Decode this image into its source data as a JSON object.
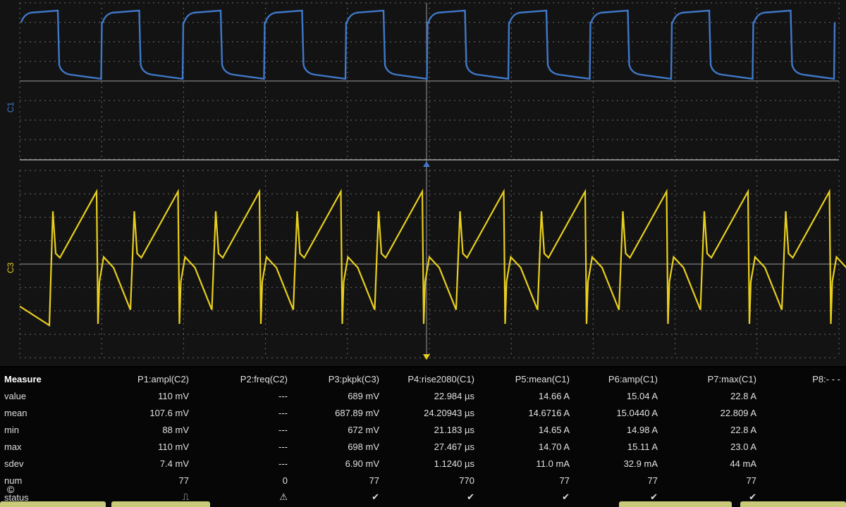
{
  "channels": {
    "c1": {
      "label": "C1",
      "color": "#3f78c9"
    },
    "c3": {
      "label": "C3",
      "color": "#e8cf1d"
    }
  },
  "measure": {
    "header": [
      "Measure",
      "P1:ampl(C2)",
      "P2:freq(C2)",
      "P3:pkpk(C3)",
      "P4:rise2080(C1)",
      "P5:mean(C1)",
      "P6:amp(C1)",
      "P7:max(C1)",
      "P8:- - -"
    ],
    "rows": [
      {
        "label": "value",
        "cells": [
          "110 mV",
          "---",
          "689 mV",
          "22.984 µs",
          "14.66 A",
          "15.04 A",
          "22.8 A",
          ""
        ]
      },
      {
        "label": "mean",
        "cells": [
          "107.6 mV",
          "---",
          "687.89 mV",
          "24.20943 µs",
          "14.6716 A",
          "15.0440 A",
          "22.809 A",
          ""
        ]
      },
      {
        "label": "min",
        "cells": [
          "88 mV",
          "---",
          "672 mV",
          "21.183 µs",
          "14.65 A",
          "14.98 A",
          "22.8 A",
          ""
        ]
      },
      {
        "label": "max",
        "cells": [
          "110 mV",
          "---",
          "698 mV",
          "27.467 µs",
          "14.70 A",
          "15.11 A",
          "23.0 A",
          ""
        ]
      },
      {
        "label": "sdev",
        "cells": [
          "7.4 mV",
          "---",
          "6.90 mV",
          "1.1240 µs",
          "11.0 mA",
          "32.9 mA",
          "44 mA",
          ""
        ]
      },
      {
        "label": "num",
        "cells": [
          "77",
          "0",
          "77",
          "770",
          "77",
          "77",
          "77",
          ""
        ]
      },
      {
        "label": "status",
        "cells": [
          "⎍",
          "⚠",
          "✔",
          "✔",
          "✔",
          "✔",
          "✔",
          ""
        ]
      }
    ]
  },
  "copyright": "©"
}
